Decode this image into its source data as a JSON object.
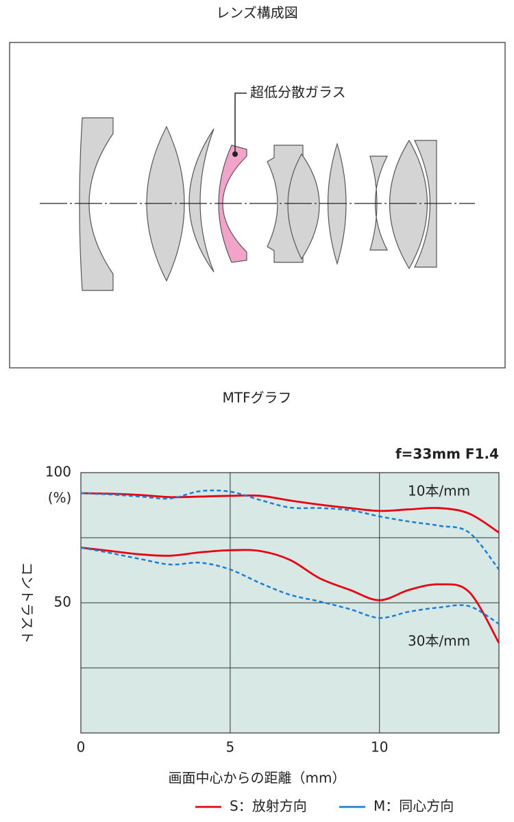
{
  "lens_diagram": {
    "title": "レンズ構成図",
    "label": "超低分散ガラス"
  },
  "chart_data": {
    "type": "line",
    "title": "MTFグラフ",
    "spec": "f=33mm F1.4",
    "xlabel": "画面中心からの距離（mm）",
    "ylabel": "コントラスト",
    "y_unit": "(%)",
    "x": [
      0,
      1,
      2,
      3,
      4,
      5,
      6,
      7,
      8,
      9,
      10,
      11,
      12,
      13,
      14
    ],
    "xlim": [
      0,
      14
    ],
    "xticks": [
      0,
      5,
      10
    ],
    "ylim": [
      0,
      100
    ],
    "yticks": [
      50,
      100
    ],
    "ygrid": [
      25,
      50,
      75
    ],
    "grid": true,
    "annotations": [
      "10本/mm",
      "30本/mm"
    ],
    "legend": [
      {
        "name": "S：放射方向",
        "color": "#e60012"
      },
      {
        "name": "M：同心方向",
        "color": "#1a7fd4"
      }
    ],
    "series": [
      {
        "legend": 0,
        "dashed": false,
        "values": [
          92.1,
          91.9,
          91.4,
          90.6,
          90.8,
          91.1,
          91.1,
          89.3,
          87.7,
          86.4,
          85.3,
          85.9,
          86.4,
          84.3,
          77
        ]
      },
      {
        "legend": 1,
        "dashed": true,
        "values": [
          92.1,
          91.6,
          90.8,
          90.1,
          92.9,
          92.7,
          89.5,
          86.6,
          86.4,
          85.6,
          83.2,
          81.2,
          79.6,
          77,
          62.8
        ]
      },
      {
        "legend": 0,
        "dashed": false,
        "values": [
          71.2,
          69.9,
          68.6,
          68.1,
          69.4,
          70.2,
          69.9,
          66.5,
          59.4,
          55,
          51,
          55,
          57.1,
          54.2,
          34.6
        ]
      },
      {
        "legend": 1,
        "dashed": true,
        "values": [
          71.2,
          69.1,
          66.8,
          64.7,
          65.4,
          62.8,
          57.6,
          53.1,
          50.5,
          47.6,
          44.2,
          46.6,
          48.2,
          48.7,
          41.9
        ]
      }
    ]
  }
}
